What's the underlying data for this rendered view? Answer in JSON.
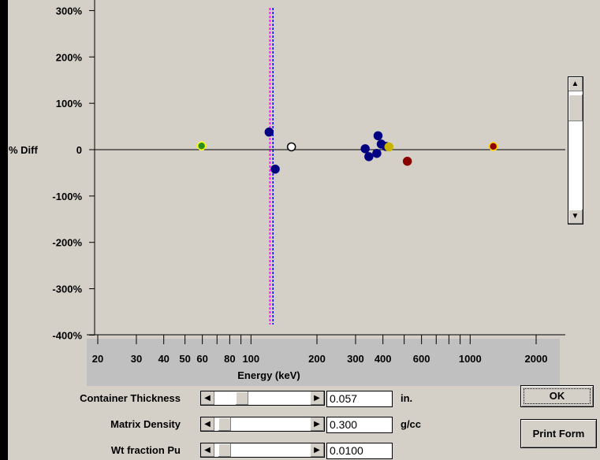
{
  "chart_data": {
    "type": "scatter",
    "ylabel": "% Diff",
    "xlabel": "Energy (keV)",
    "x_scale": "log",
    "xlim": [
      20,
      3000
    ],
    "ylim": [
      -400,
      300
    ],
    "y_ticks": [
      {
        "value": 300,
        "label": "300%"
      },
      {
        "value": 200,
        "label": "200%"
      },
      {
        "value": 100,
        "label": "100%"
      },
      {
        "value": 0,
        "label": "0"
      },
      {
        "value": -100,
        "label": "-100%"
      },
      {
        "value": -200,
        "label": "-200%"
      },
      {
        "value": -300,
        "label": "-300%"
      },
      {
        "value": -400,
        "label": "-400%"
      }
    ],
    "x_ticks": [
      {
        "value": 20,
        "label": "20"
      },
      {
        "value": 30,
        "label": "30"
      },
      {
        "value": 40,
        "label": "40"
      },
      {
        "value": 50,
        "label": "50"
      },
      {
        "value": 60,
        "label": "60"
      },
      {
        "value": 80,
        "label": "80"
      },
      {
        "value": 100,
        "label": "100"
      },
      {
        "value": 200,
        "label": "200"
      },
      {
        "value": 300,
        "label": "300"
      },
      {
        "value": 400,
        "label": "400"
      },
      {
        "value": 600,
        "label": "600"
      },
      {
        "value": 1000,
        "label": "1000"
      },
      {
        "value": 2000,
        "label": "2000"
      }
    ],
    "x_minor_ticks": [
      70,
      90,
      500,
      700,
      800,
      900
    ],
    "reference_lines_x": [
      {
        "value": 122,
        "color": "#ff00ff"
      },
      {
        "value": 126,
        "color": "#0000ff"
      }
    ],
    "points": [
      {
        "x": 59.5,
        "y": 8,
        "fill": "#2e8b1e",
        "stroke": "#ffff00"
      },
      {
        "x": 121,
        "y": 38,
        "fill": "#000080",
        "stroke": "#000080"
      },
      {
        "x": 129,
        "y": -42,
        "fill": "#000080",
        "stroke": "#000080"
      },
      {
        "x": 153,
        "y": 6,
        "fill": "#ffffff",
        "stroke": "#000000"
      },
      {
        "x": 332,
        "y": 2,
        "fill": "#000080",
        "stroke": "#000080"
      },
      {
        "x": 345,
        "y": -15,
        "fill": "#000080",
        "stroke": "#000080"
      },
      {
        "x": 375,
        "y": -8,
        "fill": "#000080",
        "stroke": "#000080"
      },
      {
        "x": 380,
        "y": 30,
        "fill": "#000080",
        "stroke": "#000080"
      },
      {
        "x": 393,
        "y": 12,
        "fill": "#000080",
        "stroke": "#000080"
      },
      {
        "x": 413,
        "y": 7,
        "fill": "#000080",
        "stroke": "#000080"
      },
      {
        "x": 426,
        "y": 6,
        "fill": "#c8b400",
        "stroke": "#c8b400"
      },
      {
        "x": 517,
        "y": -25,
        "fill": "#8b0000",
        "stroke": "#8b0000"
      },
      {
        "x": 1275,
        "y": 7,
        "fill": "#8b0000",
        "stroke": "#ffd700"
      }
    ]
  },
  "controls": {
    "container_thickness": {
      "label": "Container Thickness",
      "value": "0.057",
      "unit": "in.",
      "slider_position": 0.25
    },
    "matrix_density": {
      "label": "Matrix Density",
      "value": "0.300",
      "unit": "g/cc",
      "slider_position": 0.05
    },
    "wt_fraction_pu": {
      "label": "Wt fraction Pu",
      "value": "0.0100",
      "unit": "",
      "slider_position": 0.05
    }
  },
  "buttons": {
    "ok": "OK",
    "print_form": "Print Form"
  },
  "icons": {
    "left": "◀",
    "right": "▶",
    "up": "▲",
    "down": "▼"
  },
  "colors": {
    "background": "#d4d0c8",
    "axis_band": "#c0c0c0",
    "marker_default": "#000080"
  }
}
